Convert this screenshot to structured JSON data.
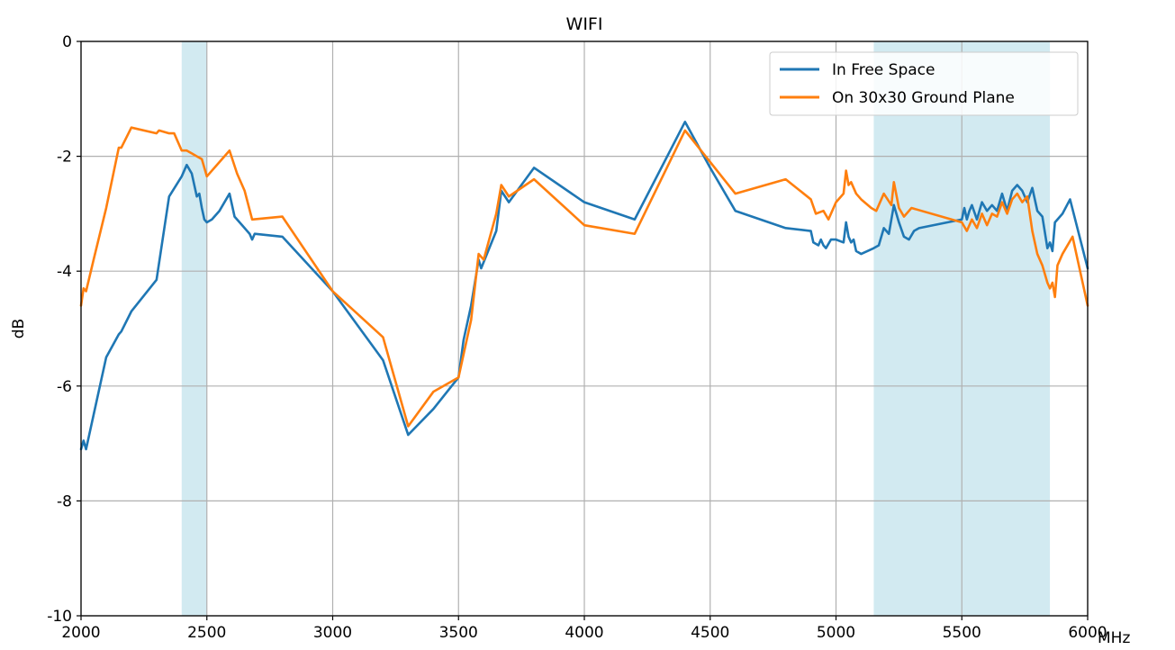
{
  "chart_data": {
    "type": "line",
    "title": "WIFI",
    "xlabel": "MHz",
    "ylabel": "dB",
    "xlim": [
      2000,
      6000
    ],
    "ylim": [
      -10,
      0
    ],
    "xticks": [
      "2000",
      "2500",
      "3000",
      "3500",
      "4000",
      "4500",
      "5000",
      "5500",
      "6000"
    ],
    "yticks": [
      "0",
      "-2",
      "-4",
      "-6",
      "-8",
      "-10"
    ],
    "grid": true,
    "legend_position": "top-right",
    "bands": [
      {
        "x0": 2400,
        "x1": 2500,
        "color": "#add8e6"
      },
      {
        "x0": 5150,
        "x1": 5850,
        "color": "#add8e6"
      }
    ],
    "series": [
      {
        "name": "In Free Space",
        "color": "#1f77b4",
        "points": [
          [
            2000,
            -7.1
          ],
          [
            2010,
            -6.95
          ],
          [
            2020,
            -7.1
          ],
          [
            2050,
            -6.5
          ],
          [
            2100,
            -5.5
          ],
          [
            2150,
            -5.1
          ],
          [
            2160,
            -5.05
          ],
          [
            2200,
            -4.7
          ],
          [
            2300,
            -4.15
          ],
          [
            2350,
            -2.7
          ],
          [
            2400,
            -2.35
          ],
          [
            2420,
            -2.15
          ],
          [
            2440,
            -2.3
          ],
          [
            2450,
            -2.5
          ],
          [
            2460,
            -2.7
          ],
          [
            2470,
            -2.65
          ],
          [
            2480,
            -2.9
          ],
          [
            2490,
            -3.1
          ],
          [
            2500,
            -3.15
          ],
          [
            2520,
            -3.1
          ],
          [
            2550,
            -2.95
          ],
          [
            2590,
            -2.65
          ],
          [
            2610,
            -3.05
          ],
          [
            2640,
            -3.2
          ],
          [
            2670,
            -3.35
          ],
          [
            2680,
            -3.45
          ],
          [
            2690,
            -3.35
          ],
          [
            2800,
            -3.4
          ],
          [
            3000,
            -4.35
          ],
          [
            3200,
            -5.55
          ],
          [
            3300,
            -6.85
          ],
          [
            3400,
            -6.4
          ],
          [
            3500,
            -5.85
          ],
          [
            3520,
            -5.2
          ],
          [
            3550,
            -4.6
          ],
          [
            3580,
            -3.8
          ],
          [
            3590,
            -3.95
          ],
          [
            3650,
            -3.3
          ],
          [
            3670,
            -2.6
          ],
          [
            3700,
            -2.8
          ],
          [
            3800,
            -2.2
          ],
          [
            4000,
            -2.8
          ],
          [
            4200,
            -3.1
          ],
          [
            4400,
            -1.4
          ],
          [
            4500,
            -2.2
          ],
          [
            4600,
            -2.95
          ],
          [
            4800,
            -3.25
          ],
          [
            4900,
            -3.3
          ],
          [
            4910,
            -3.5
          ],
          [
            4930,
            -3.55
          ],
          [
            4940,
            -3.45
          ],
          [
            4950,
            -3.55
          ],
          [
            4960,
            -3.6
          ],
          [
            4980,
            -3.45
          ],
          [
            5000,
            -3.45
          ],
          [
            5030,
            -3.5
          ],
          [
            5040,
            -3.15
          ],
          [
            5050,
            -3.4
          ],
          [
            5060,
            -3.5
          ],
          [
            5070,
            -3.45
          ],
          [
            5080,
            -3.65
          ],
          [
            5100,
            -3.7
          ],
          [
            5150,
            -3.6
          ],
          [
            5170,
            -3.55
          ],
          [
            5190,
            -3.25
          ],
          [
            5210,
            -3.35
          ],
          [
            5230,
            -2.85
          ],
          [
            5250,
            -3.15
          ],
          [
            5270,
            -3.4
          ],
          [
            5290,
            -3.45
          ],
          [
            5310,
            -3.3
          ],
          [
            5330,
            -3.25
          ],
          [
            5500,
            -3.1
          ],
          [
            5510,
            -2.9
          ],
          [
            5520,
            -3.1
          ],
          [
            5530,
            -2.95
          ],
          [
            5540,
            -2.85
          ],
          [
            5560,
            -3.1
          ],
          [
            5580,
            -2.8
          ],
          [
            5600,
            -2.95
          ],
          [
            5620,
            -2.85
          ],
          [
            5640,
            -2.95
          ],
          [
            5660,
            -2.65
          ],
          [
            5680,
            -2.95
          ],
          [
            5700,
            -2.6
          ],
          [
            5720,
            -2.5
          ],
          [
            5740,
            -2.6
          ],
          [
            5760,
            -2.8
          ],
          [
            5780,
            -2.55
          ],
          [
            5800,
            -2.95
          ],
          [
            5820,
            -3.05
          ],
          [
            5840,
            -3.6
          ],
          [
            5850,
            -3.5
          ],
          [
            5860,
            -3.65
          ],
          [
            5870,
            -3.15
          ],
          [
            5900,
            -3.0
          ],
          [
            5930,
            -2.75
          ],
          [
            6000,
            -3.95
          ]
        ]
      },
      {
        "name": "On 30x30 Ground Plane",
        "color": "#ff7f0e",
        "points": [
          [
            2000,
            -4.6
          ],
          [
            2010,
            -4.3
          ],
          [
            2020,
            -4.35
          ],
          [
            2050,
            -3.8
          ],
          [
            2100,
            -2.9
          ],
          [
            2150,
            -1.85
          ],
          [
            2160,
            -1.85
          ],
          [
            2200,
            -1.5
          ],
          [
            2300,
            -1.6
          ],
          [
            2310,
            -1.55
          ],
          [
            2350,
            -1.6
          ],
          [
            2370,
            -1.6
          ],
          [
            2400,
            -1.9
          ],
          [
            2420,
            -1.9
          ],
          [
            2440,
            -1.95
          ],
          [
            2460,
            -2.0
          ],
          [
            2480,
            -2.05
          ],
          [
            2500,
            -2.35
          ],
          [
            2550,
            -2.1
          ],
          [
            2590,
            -1.9
          ],
          [
            2620,
            -2.3
          ],
          [
            2650,
            -2.6
          ],
          [
            2680,
            -3.1
          ],
          [
            2800,
            -3.05
          ],
          [
            3000,
            -4.35
          ],
          [
            3200,
            -5.15
          ],
          [
            3300,
            -6.7
          ],
          [
            3400,
            -6.1
          ],
          [
            3500,
            -5.85
          ],
          [
            3520,
            -5.45
          ],
          [
            3550,
            -4.85
          ],
          [
            3580,
            -3.7
          ],
          [
            3600,
            -3.8
          ],
          [
            3650,
            -3.0
          ],
          [
            3670,
            -2.5
          ],
          [
            3700,
            -2.7
          ],
          [
            3800,
            -2.4
          ],
          [
            4000,
            -3.2
          ],
          [
            4200,
            -3.35
          ],
          [
            4400,
            -1.55
          ],
          [
            4600,
            -2.65
          ],
          [
            4800,
            -2.4
          ],
          [
            4900,
            -2.75
          ],
          [
            4920,
            -3.0
          ],
          [
            4950,
            -2.95
          ],
          [
            4970,
            -3.1
          ],
          [
            5000,
            -2.8
          ],
          [
            5020,
            -2.7
          ],
          [
            5030,
            -2.65
          ],
          [
            5040,
            -2.25
          ],
          [
            5050,
            -2.5
          ],
          [
            5060,
            -2.45
          ],
          [
            5080,
            -2.65
          ],
          [
            5100,
            -2.75
          ],
          [
            5140,
            -2.9
          ],
          [
            5160,
            -2.95
          ],
          [
            5190,
            -2.65
          ],
          [
            5220,
            -2.85
          ],
          [
            5230,
            -2.45
          ],
          [
            5250,
            -2.9
          ],
          [
            5270,
            -3.05
          ],
          [
            5300,
            -2.9
          ],
          [
            5500,
            -3.15
          ],
          [
            5520,
            -3.3
          ],
          [
            5540,
            -3.1
          ],
          [
            5560,
            -3.25
          ],
          [
            5580,
            -3.0
          ],
          [
            5600,
            -3.2
          ],
          [
            5620,
            -3.0
          ],
          [
            5640,
            -3.05
          ],
          [
            5660,
            -2.8
          ],
          [
            5680,
            -3.0
          ],
          [
            5700,
            -2.75
          ],
          [
            5720,
            -2.65
          ],
          [
            5740,
            -2.8
          ],
          [
            5760,
            -2.7
          ],
          [
            5780,
            -3.3
          ],
          [
            5800,
            -3.7
          ],
          [
            5820,
            -3.9
          ],
          [
            5840,
            -4.2
          ],
          [
            5850,
            -4.3
          ],
          [
            5860,
            -4.2
          ],
          [
            5870,
            -4.45
          ],
          [
            5880,
            -3.9
          ],
          [
            5900,
            -3.7
          ],
          [
            5940,
            -3.4
          ],
          [
            6000,
            -4.6
          ]
        ]
      }
    ]
  }
}
